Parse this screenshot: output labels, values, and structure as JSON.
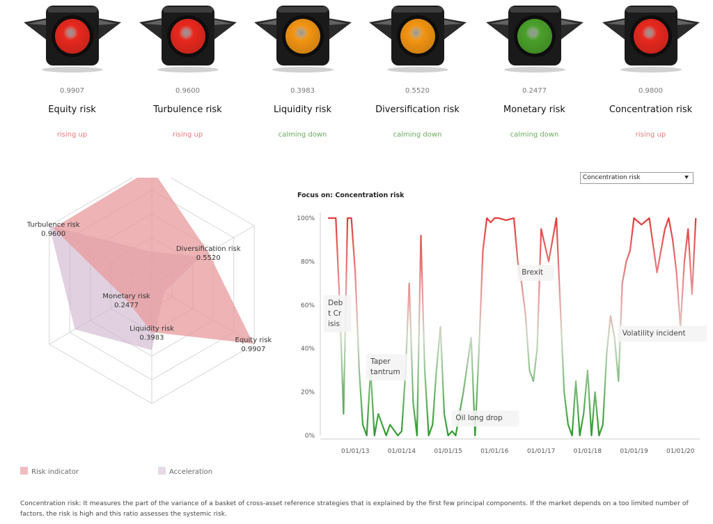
{
  "lights": [
    {
      "value": "0.9907",
      "name": "Equity risk",
      "trend": "rising up",
      "color": "red"
    },
    {
      "value": "0.9600",
      "name": "Turbulence risk",
      "trend": "rising up",
      "color": "red"
    },
    {
      "value": "0.3983",
      "name": "Liquidity risk",
      "trend": "calming down",
      "color": "orange"
    },
    {
      "value": "0.5520",
      "name": "Diversification risk",
      "trend": "calming down",
      "color": "orange"
    },
    {
      "value": "0.2477",
      "name": "Monetary risk",
      "trend": "calming down",
      "color": "green"
    },
    {
      "value": "0.9800",
      "name": "Concentration risk",
      "trend": "rising up",
      "color": "red"
    }
  ],
  "colors": {
    "red": "#e8281e",
    "orange": "#f39512",
    "green": "#4aa02a",
    "risk_fill": "#e79a9c",
    "accel_fill": "#cdb3cc",
    "line_high": "#e23a3a",
    "line_low": "#2d9a2d"
  },
  "dropdown": {
    "selected": "Concentration risk"
  },
  "focus_title": "Focus on: Concentration risk",
  "chart_data": [
    {
      "type": "radar",
      "axes": [
        "Concentration risk",
        "Diversification risk",
        "Equity risk",
        "Liquidity risk",
        "Monetary risk",
        "Turbulence risk"
      ],
      "axis_value_labels": [
        "0.9800",
        "0.5520",
        "0.9907",
        "0.3983",
        "0.2477",
        "0.9600"
      ],
      "series": [
        {
          "name": "Risk indicator",
          "values": [
            0.98,
            0.552,
            0.9907,
            0.3983,
            0.2477,
            0.96
          ]
        },
        {
          "name": "Acceleration",
          "values": [
            0.28,
            0.48,
            0.12,
            0.55,
            0.75,
            1.0
          ]
        }
      ],
      "range": [
        0,
        1
      ],
      "legend_position": "bottom-left"
    },
    {
      "type": "line",
      "title": "Focus on: Concentration risk",
      "x_ticks": [
        "01/01/13",
        "01/01/14",
        "01/01/15",
        "01/01/16",
        "01/01/17",
        "01/01/18",
        "01/01/19",
        "01/01/20"
      ],
      "y_ticks": [
        "0%",
        "20%",
        "40%",
        "60%",
        "80%",
        "100%"
      ],
      "ylim": [
        0,
        1
      ],
      "xlim": [
        "2012-04",
        "2020-06"
      ],
      "series": [
        {
          "x": [
            "2012-06",
            "2012-08",
            "2012-09",
            "2012-10",
            "2012-11",
            "2012-12",
            "2013-01",
            "2013-02",
            "2013-03",
            "2013-04",
            "2013-05",
            "2013-06",
            "2013-07",
            "2013-09",
            "2013-10",
            "2013-12",
            "2014-01",
            "2014-02",
            "2014-03",
            "2014-04",
            "2014-05",
            "2014-06",
            "2014-07",
            "2014-08",
            "2014-09",
            "2014-10",
            "2014-11",
            "2014-12",
            "2015-01",
            "2015-02",
            "2015-03",
            "2015-05",
            "2015-07",
            "2015-08",
            "2015-09",
            "2015-10",
            "2015-11",
            "2015-12",
            "2016-01",
            "2016-02",
            "2016-04",
            "2016-06",
            "2016-07",
            "2016-08",
            "2016-09",
            "2016-10",
            "2016-11",
            "2016-12",
            "2017-01",
            "2017-03",
            "2017-05",
            "2017-07",
            "2017-08",
            "2017-09",
            "2017-10",
            "2017-11",
            "2017-12",
            "2018-01",
            "2018-02",
            "2018-03",
            "2018-04",
            "2018-05",
            "2018-06",
            "2018-07",
            "2018-08",
            "2018-09",
            "2018-10",
            "2018-11",
            "2018-12",
            "2019-01",
            "2019-03",
            "2019-05",
            "2019-07",
            "2019-09",
            "2019-10",
            "2019-11",
            "2019-12",
            "2020-01",
            "2020-02",
            "2020-03",
            "2020-04",
            "2020-05"
          ],
          "values": [
            1.0,
            1.0,
            0.6,
            0.1,
            1.0,
            1.0,
            0.75,
            0.3,
            0.05,
            0.0,
            0.3,
            0.0,
            0.1,
            0.0,
            0.05,
            0.0,
            0.02,
            0.3,
            0.7,
            0.15,
            0.0,
            0.92,
            0.3,
            0.0,
            0.05,
            0.3,
            0.5,
            0.1,
            0.0,
            0.02,
            0.0,
            0.2,
            0.45,
            0.0,
            0.4,
            0.85,
            1.0,
            0.98,
            1.0,
            1.0,
            0.99,
            1.0,
            0.8,
            0.7,
            0.55,
            0.3,
            0.25,
            0.4,
            0.95,
            0.8,
            1.0,
            0.2,
            0.05,
            0.0,
            0.25,
            0.0,
            0.1,
            0.3,
            0.0,
            0.2,
            0.0,
            0.05,
            0.38,
            0.55,
            0.45,
            0.25,
            0.7,
            0.8,
            0.85,
            1.0,
            0.97,
            1.0,
            0.75,
            0.95,
            1.0,
            0.9,
            0.75,
            0.5,
            0.8,
            0.95,
            0.65,
            1.0
          ]
        }
      ],
      "annotations": [
        "Deb\nt Cr\nisis",
        "Taper\ntantrum",
        "Oil long drop",
        "Brexit",
        "Volatility incident"
      ]
    }
  ],
  "legend": [
    {
      "label": "Risk indicator",
      "color": "#f1bcbe"
    },
    {
      "label": "Acceleration",
      "color": "#e6dae6"
    }
  ],
  "footnote": "Concentration risk: It measures the part of the variance of a basket of cross-asset reference strategies that is explained by the first few principal components. If the market depends on a too limited number of factors, the risk is high and this ratio assesses the systemic risk."
}
